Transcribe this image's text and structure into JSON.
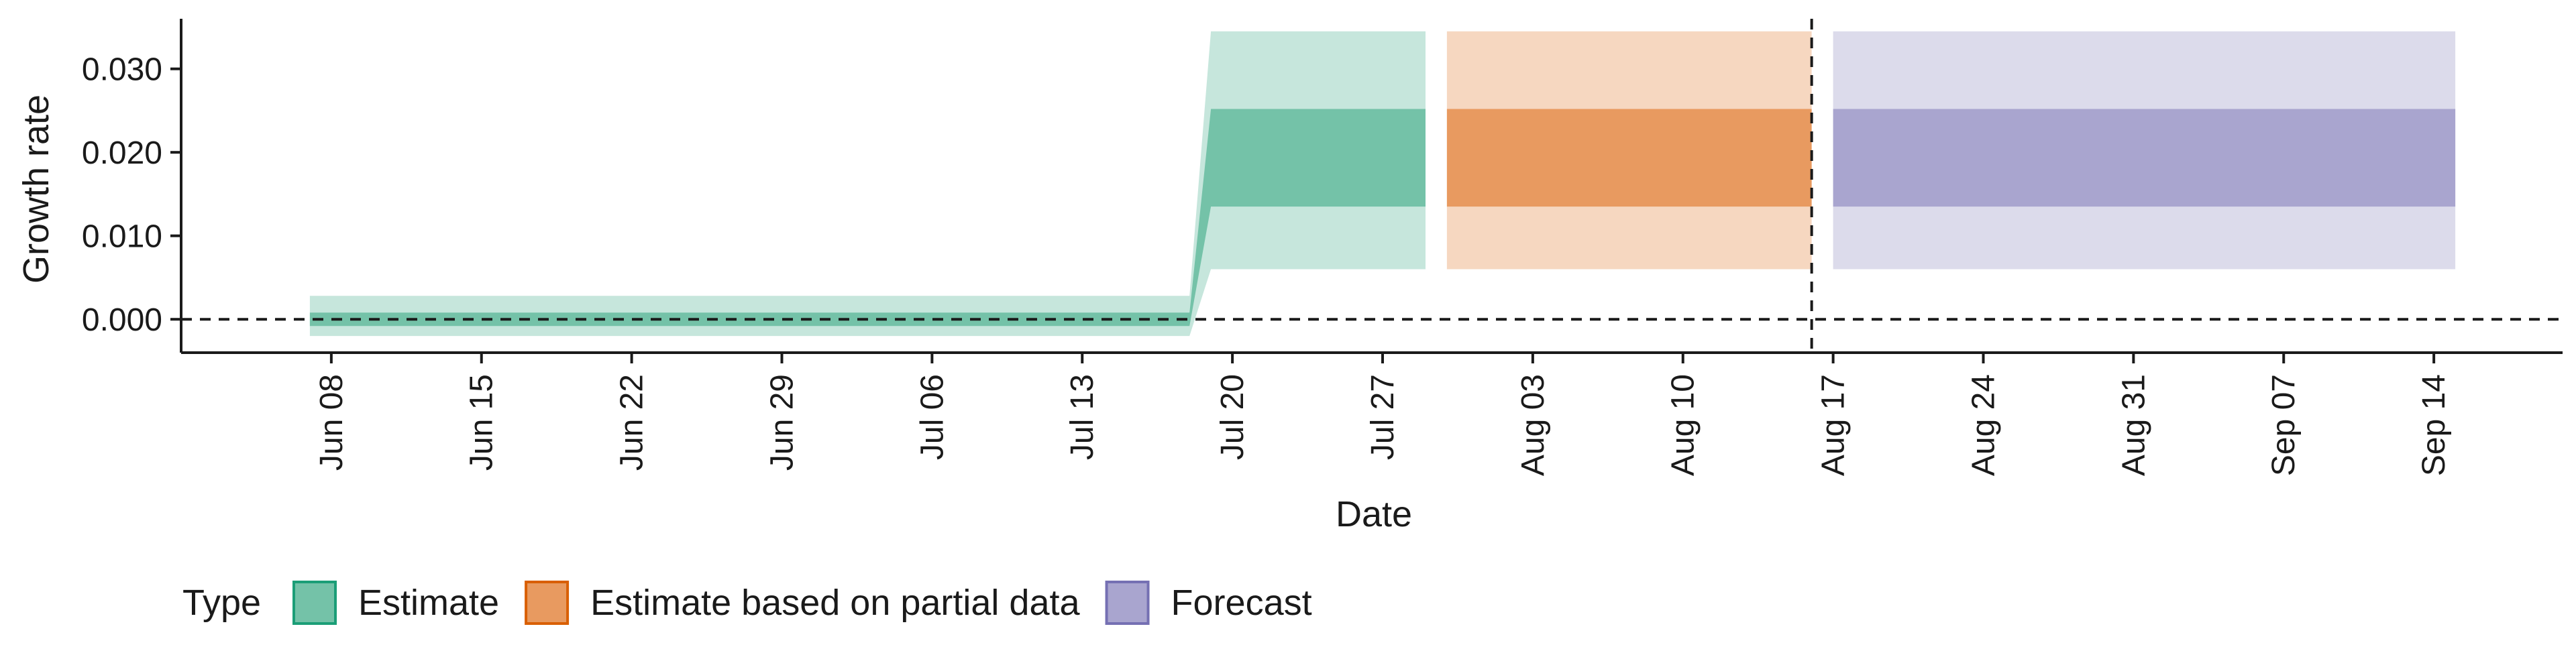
{
  "chart_data": {
    "type": "area",
    "xlabel": "Date",
    "ylabel": "Growth rate",
    "x_ticks": [
      "Jun 08",
      "Jun 15",
      "Jun 22",
      "Jun 29",
      "Jul 06",
      "Jul 13",
      "Jul 20",
      "Jul 27",
      "Aug 03",
      "Aug 10",
      "Aug 17",
      "Aug 24",
      "Aug 31",
      "Sep 07",
      "Sep 14"
    ],
    "y_ticks": [
      "0.000",
      "0.010",
      "0.020",
      "0.030"
    ],
    "xlim": [
      "2020-06-01",
      "2020-09-20"
    ],
    "ylim": [
      -0.004,
      0.036
    ],
    "hline_y": 0,
    "vline_date": "2020-08-16",
    "grid": false,
    "legend": {
      "title": "Type",
      "position": "bottom",
      "entries": [
        {
          "label": "Estimate",
          "fill": "#74c2a8",
          "border": "#1b9e77"
        },
        {
          "label": "Estimate based on partial data",
          "fill": "#e89a60",
          "border": "#d95f02"
        },
        {
          "label": "Forecast",
          "fill": "#a9a5cf",
          "border": "#7570b3"
        }
      ]
    },
    "series": [
      {
        "name": "Estimate",
        "inner_color": "#74c2a8",
        "outer_color": "#c6e6dc",
        "points": [
          {
            "date": "2020-06-07",
            "lo90": -0.002,
            "lo50": -0.0008,
            "hi50": 0.0008,
            "hi90": 0.0028
          },
          {
            "date": "2020-07-18",
            "lo90": -0.002,
            "lo50": -0.0008,
            "hi50": 0.0008,
            "hi90": 0.0028
          },
          {
            "date": "2020-07-19",
            "lo90": 0.006,
            "lo50": 0.0135,
            "hi50": 0.0252,
            "hi90": 0.0345
          },
          {
            "date": "2020-07-29",
            "lo90": 0.006,
            "lo50": 0.0135,
            "hi50": 0.0252,
            "hi90": 0.0345
          }
        ]
      },
      {
        "name": "Estimate based on partial data",
        "inner_color": "#e89a60",
        "outer_color": "#f6d7c0",
        "points": [
          {
            "date": "2020-07-30",
            "lo90": 0.006,
            "lo50": 0.0135,
            "hi50": 0.0252,
            "hi90": 0.0345
          },
          {
            "date": "2020-08-16",
            "lo90": 0.006,
            "lo50": 0.0135,
            "hi50": 0.0252,
            "hi90": 0.0345
          }
        ]
      },
      {
        "name": "Forecast",
        "inner_color": "#a9a5cf",
        "outer_color": "#dcdbeb",
        "points": [
          {
            "date": "2020-08-17",
            "lo90": 0.006,
            "lo50": 0.0135,
            "hi50": 0.0252,
            "hi90": 0.0345
          },
          {
            "date": "2020-09-15",
            "lo90": 0.006,
            "lo50": 0.0135,
            "hi50": 0.0252,
            "hi90": 0.0345
          }
        ]
      }
    ]
  }
}
